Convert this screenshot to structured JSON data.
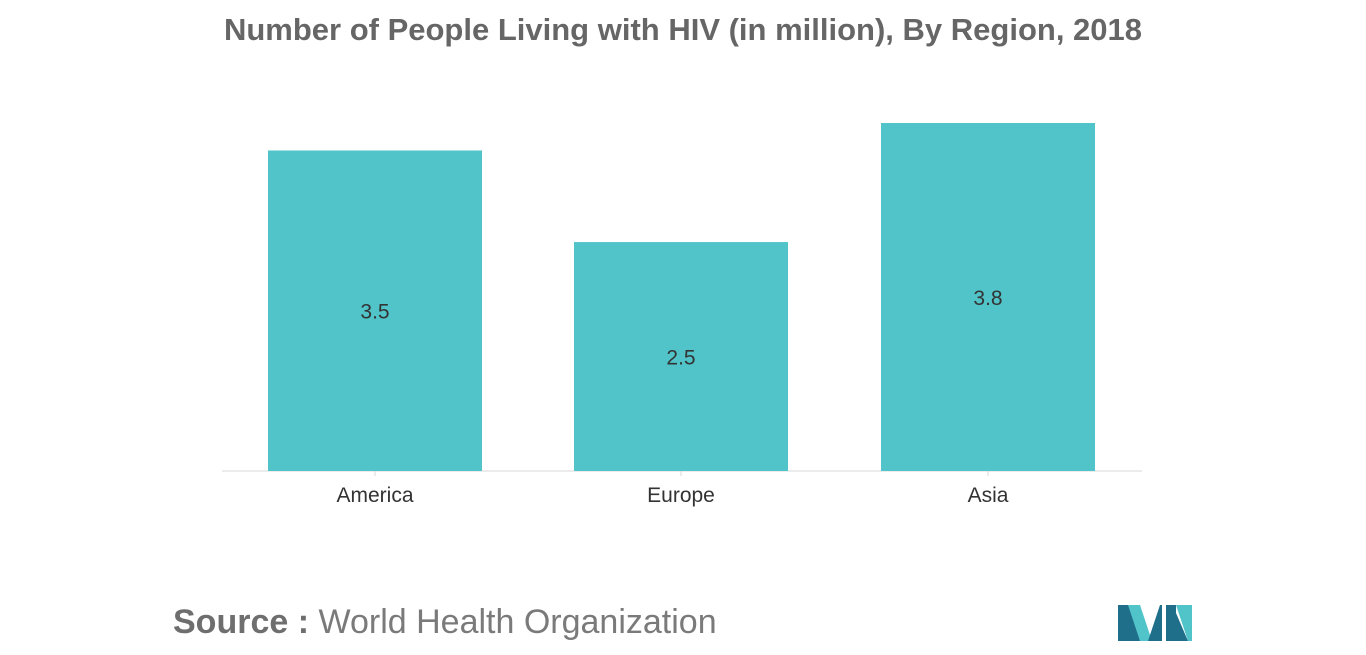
{
  "title": "Number of People Living with HIV (in million), By Region, 2018",
  "source": {
    "prefix": "Source :",
    "text": "World Health Organization"
  },
  "logo": {
    "icon": "mordor-intelligence-logo-icon",
    "colors": [
      "#1f6f8b",
      "#51c4ca"
    ]
  },
  "colors": {
    "bar": "#51c4ca",
    "title": "#666666",
    "axis": "#d9d9d9"
  },
  "chart_data": {
    "type": "bar",
    "title": "Number of People Living with HIV (in million), By Region, 2018",
    "categories": [
      "America",
      "Europe",
      "Asia"
    ],
    "values": [
      3.5,
      2.5,
      3.8
    ],
    "value_labels": [
      "3.5",
      "2.5",
      "3.8"
    ],
    "xlabel": "",
    "ylabel": "",
    "ylim": [
      0,
      3.8
    ],
    "grid": false,
    "legend": "none"
  }
}
